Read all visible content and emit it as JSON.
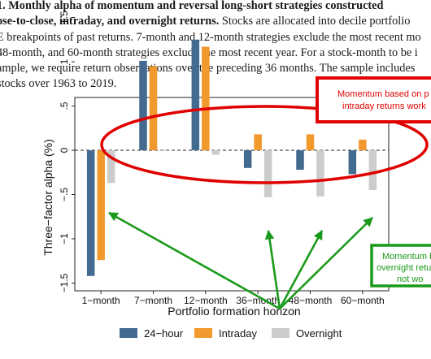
{
  "caption": {
    "line1_bold": "1.  Monthly alpha of momentum and reversal long-short strategies constructed",
    "line2_bold": "ose-to-close, intraday, and overnight returns.",
    "line2_rest": " Stocks are allocated into decile portfolio",
    "line3": "E breakpoints of past returns. 7-month and 12-month strategies exclude the most recent mo",
    "line4": "48-month, and 60-month strategies exclude the most recent year.  For a stock-month to be i",
    "line5": "ample, we require return observations over the preceding 36 months.  The sample includes",
    "line6": " stocks over 1963 to 2019."
  },
  "annotations": {
    "red_box": [
      "Momentum based on p",
      "intraday returns work"
    ],
    "green_box": [
      "Momentum b",
      "overnight retu",
      "not wo"
    ],
    "colors": {
      "red": "#e00000",
      "green": "#1a9a1a"
    }
  },
  "chart_data": {
    "type": "bar",
    "categories": [
      "1−month",
      "7−month",
      "12−month",
      "36−month",
      "48−month",
      "60−month"
    ],
    "series": [
      {
        "name": "24−hour",
        "color": "#436a8f",
        "values": [
          -1.42,
          1.01,
          1.25,
          -0.2,
          -0.22,
          -0.27
        ]
      },
      {
        "name": "Intraday",
        "color": "#f2992e",
        "values": [
          -1.24,
          0.95,
          1.17,
          0.18,
          0.18,
          0.12
        ]
      },
      {
        "name": "Overnight",
        "color": "#cccccc",
        "values": [
          -0.37,
          0.0,
          -0.05,
          -0.53,
          -0.52,
          -0.45
        ]
      }
    ],
    "yticks": [
      "−1.5",
      "−1",
      "−.5",
      "0",
      ".5",
      "1",
      "1.5"
    ],
    "ytick_values": [
      -1.5,
      -1,
      -0.5,
      0,
      0.5,
      1,
      1.5
    ],
    "ylim": [
      -1.5,
      1.55
    ],
    "xlabel": "Portfolio formation horizon",
    "ylabel": "Three−factor alpha (%)",
    "legend_position": "bottom",
    "zero_line": "dashed"
  }
}
